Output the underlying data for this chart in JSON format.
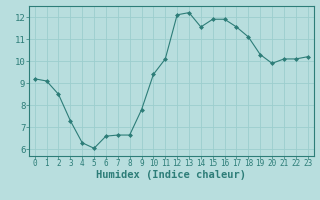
{
  "x": [
    0,
    1,
    2,
    3,
    4,
    5,
    6,
    7,
    8,
    9,
    10,
    11,
    12,
    13,
    14,
    15,
    16,
    17,
    18,
    19,
    20,
    21,
    22,
    23
  ],
  "y": [
    9.2,
    9.1,
    8.5,
    7.3,
    6.3,
    6.05,
    6.6,
    6.65,
    6.65,
    7.8,
    9.4,
    10.1,
    12.1,
    12.2,
    11.55,
    11.9,
    11.9,
    11.55,
    11.1,
    10.3,
    9.9,
    10.1,
    10.1,
    10.2
  ],
  "line_color": "#2d7d78",
  "marker": "D",
  "marker_size": 2,
  "bg_color": "#b8dede",
  "grid_color": "#9ccece",
  "xlabel": "Humidex (Indice chaleur)",
  "xlim": [
    -0.5,
    23.5
  ],
  "ylim": [
    5.7,
    12.5
  ],
  "yticks": [
    6,
    7,
    8,
    9,
    10,
    11,
    12
  ],
  "xticks": [
    0,
    1,
    2,
    3,
    4,
    5,
    6,
    7,
    8,
    9,
    10,
    11,
    12,
    13,
    14,
    15,
    16,
    17,
    18,
    19,
    20,
    21,
    22,
    23
  ],
  "tick_color": "#2d7d78",
  "label_color": "#2d7d78",
  "tick_fontsize": 5.5,
  "xlabel_fontsize": 7.5
}
